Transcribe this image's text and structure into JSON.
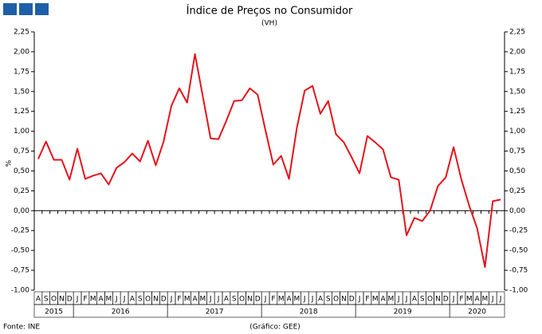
{
  "chart_data": {
    "type": "line",
    "title": "Índice de Preços no Consumidor",
    "subtitle": "(VH)",
    "y_label": "%",
    "source": "Fonte: INE",
    "credit": "(Gráfico: GEE)",
    "categories": [
      "A",
      "S",
      "O",
      "N",
      "D",
      "J",
      "F",
      "M",
      "A",
      "M",
      "J",
      "J",
      "A",
      "S",
      "O",
      "N",
      "D",
      "J",
      "F",
      "M",
      "A",
      "M",
      "J",
      "J",
      "A",
      "S",
      "O",
      "N",
      "D",
      "J",
      "F",
      "M",
      "A",
      "M",
      "J",
      "J",
      "A",
      "S",
      "O",
      "N",
      "D",
      "J",
      "F",
      "M",
      "A",
      "M",
      "J",
      "J",
      "A",
      "S",
      "O",
      "N",
      "D",
      "J",
      "F",
      "M",
      "A",
      "M",
      "J",
      "J"
    ],
    "year_groups": [
      {
        "label": "2015",
        "count": 5
      },
      {
        "label": "2016",
        "count": 12
      },
      {
        "label": "2017",
        "count": 12
      },
      {
        "label": "2018",
        "count": 12
      },
      {
        "label": "2019",
        "count": 12
      },
      {
        "label": "2020",
        "count": 7
      }
    ],
    "series": [
      {
        "color": "#e3141c",
        "values": [
          0.65,
          0.87,
          0.64,
          0.64,
          0.39,
          0.78,
          0.4,
          0.44,
          0.47,
          0.33,
          0.54,
          0.61,
          0.72,
          0.62,
          0.88,
          0.57,
          0.87,
          1.32,
          1.54,
          1.36,
          1.97,
          1.44,
          0.91,
          0.9,
          1.13,
          1.38,
          1.39,
          1.54,
          1.46,
          1.01,
          0.58,
          0.69,
          0.4,
          1.04,
          1.51,
          1.57,
          1.22,
          1.38,
          0.96,
          0.86,
          0.67,
          0.47,
          0.94,
          0.86,
          0.77,
          0.42,
          0.39,
          -0.31,
          -0.09,
          -0.13,
          0.0,
          0.31,
          0.42,
          0.8,
          0.39,
          0.06,
          -0.22,
          -0.71,
          0.12,
          0.14
        ]
      }
    ],
    "ylim": [
      -1,
      2.25
    ],
    "yticks": [
      {
        "value": -1,
        "label": "-1,00"
      },
      {
        "value": -0.75,
        "label": "-0,75"
      },
      {
        "value": -0.5,
        "label": "-0,50"
      },
      {
        "value": -0.25,
        "label": "-0,25"
      },
      {
        "value": 0,
        "label": "0,00"
      },
      {
        "value": 0.25,
        "label": "0,25"
      },
      {
        "value": 0.5,
        "label": "0,50"
      },
      {
        "value": 0.75,
        "label": "0,75"
      },
      {
        "value": 1,
        "label": "1,00"
      },
      {
        "value": 1.25,
        "label": "1,25"
      },
      {
        "value": 1.5,
        "label": "1,50"
      },
      {
        "value": 1.75,
        "label": "1,75"
      },
      {
        "value": 2,
        "label": "2,00"
      },
      {
        "value": 2.25,
        "label": "2,25"
      }
    ],
    "y2lim": [
      -1,
      2.25
    ],
    "y2ticks": [
      {
        "value": -1,
        "label": "-1,00"
      },
      {
        "value": -0.75,
        "label": "-0,75"
      },
      {
        "value": -0.5,
        "label": "-0,50"
      },
      {
        "value": -0.25,
        "label": "-0,25"
      },
      {
        "value": 0,
        "label": "0,00"
      },
      {
        "value": 0.25,
        "label": "0,25"
      },
      {
        "value": 0.5,
        "label": "0,50"
      },
      {
        "value": 0.75,
        "label": "0,75"
      },
      {
        "value": 1,
        "label": "1,00"
      },
      {
        "value": 1.25,
        "label": "1,25"
      },
      {
        "value": 1.5,
        "label": "1,50"
      },
      {
        "value": 1.75,
        "label": "1,75"
      },
      {
        "value": 2,
        "label": "2,00"
      },
      {
        "value": 2.25,
        "label": "2,25"
      }
    ],
    "grid": false
  }
}
